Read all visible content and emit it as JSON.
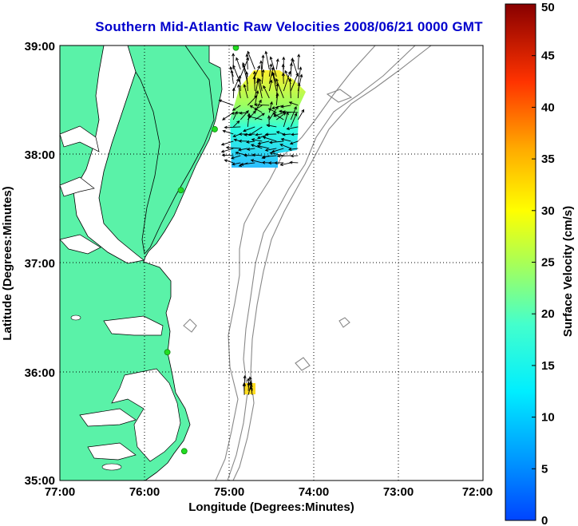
{
  "title": "Southern Mid-Atlantic Raw Velocities 2008/06/21 0000 GMT",
  "axes": {
    "xlabel": "Longitude (Degrees:Minutes)",
    "ylabel": "Latitude (Degrees:Minutes)",
    "x_ticks": [
      "77:00",
      "76:00",
      "75:00",
      "74:00",
      "73:00",
      "72:00"
    ],
    "y_ticks": [
      "39:00",
      "38:00",
      "37:00",
      "36:00",
      "35:00"
    ],
    "x_range_deg_west": [
      77,
      72
    ],
    "y_range_deg_north": [
      35,
      39
    ],
    "grid": "dotted"
  },
  "colorbar": {
    "label": "Surface Velocity (cm/s)",
    "ticks": [
      "50",
      "45",
      "40",
      "35",
      "30",
      "25",
      "20",
      "15",
      "10",
      "5",
      "0"
    ],
    "range": [
      0,
      50
    ],
    "colormap": "jet"
  },
  "colors": {
    "land": "#5af2a8",
    "title": "#0000cc",
    "contour": "#888888",
    "site": "#22dd22"
  },
  "chart_data": {
    "type": "map",
    "stations": [
      {
        "lon": 74.92,
        "lat": 38.98
      },
      {
        "lon": 75.17,
        "lat": 38.23
      },
      {
        "lon": 75.57,
        "lat": 37.67
      },
      {
        "lon": 75.73,
        "lat": 36.18
      },
      {
        "lon": 75.53,
        "lat": 35.27
      }
    ],
    "velocity_regions": [
      {
        "lon_range": [
          74.15,
          74.95
        ],
        "lat_range": [
          37.87,
          38.78
        ],
        "speed_min_cm_s": 8,
        "speed_max_cm_s": 30
      },
      {
        "lon_range": [
          74.7,
          74.82
        ],
        "lat_range": [
          35.78,
          35.86
        ],
        "speed_min_cm_s": 25,
        "speed_max_cm_s": 30
      }
    ]
  }
}
